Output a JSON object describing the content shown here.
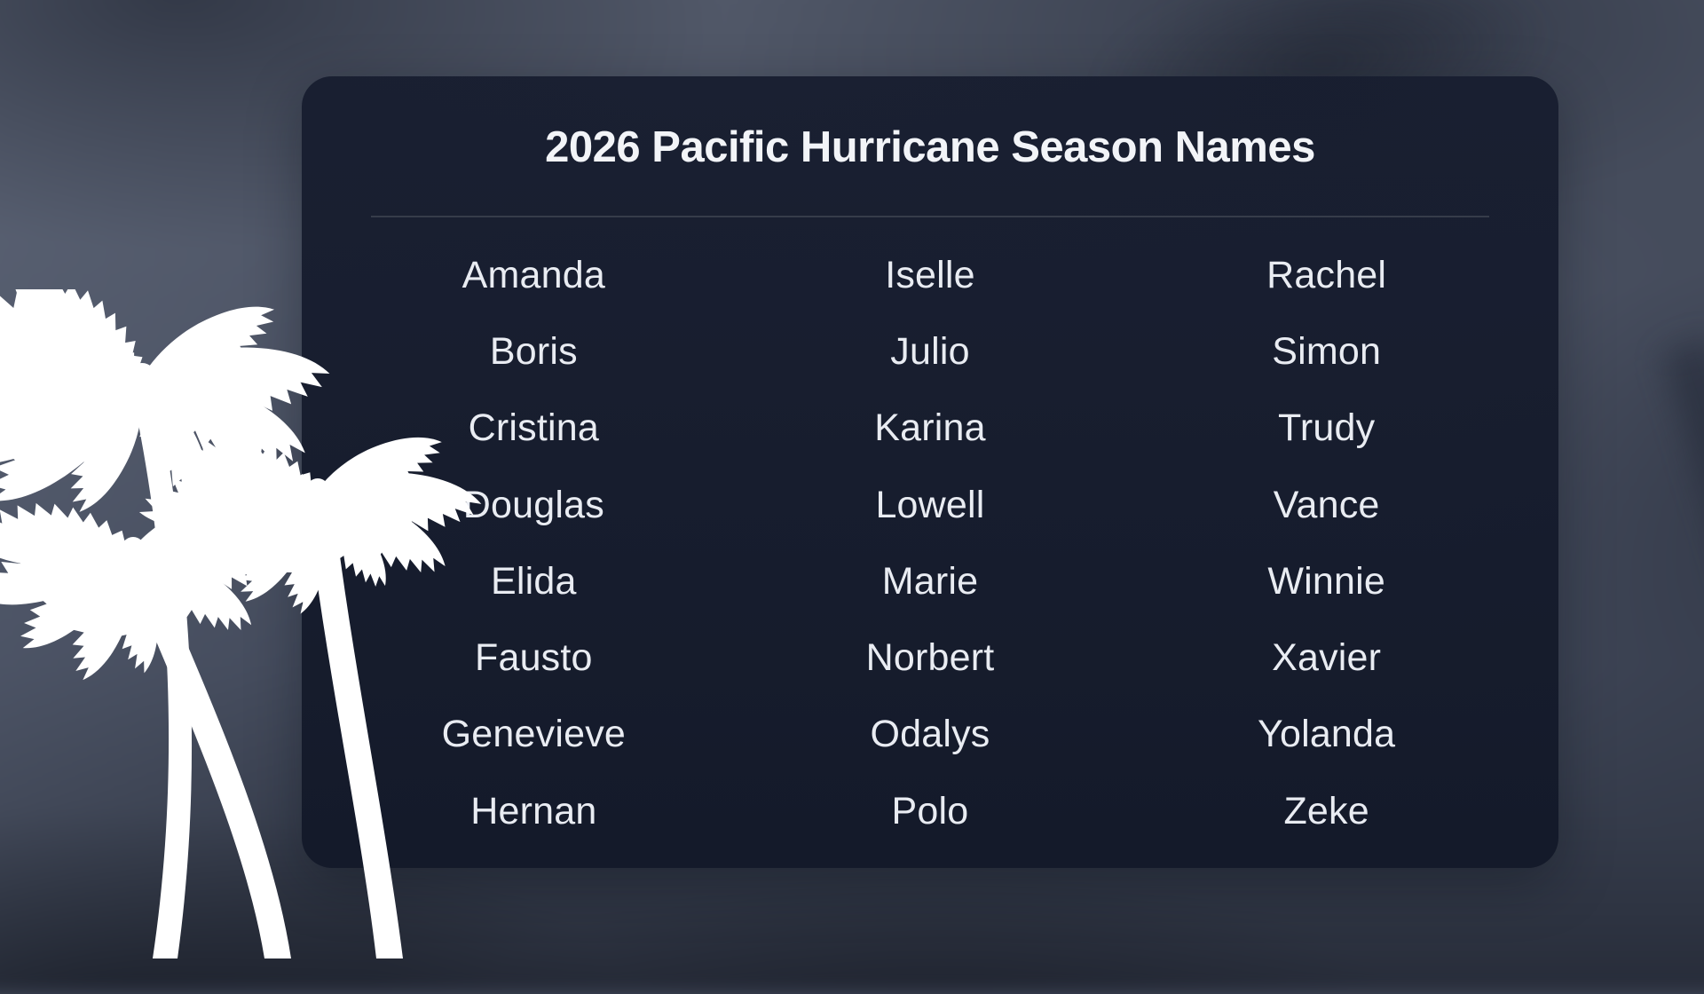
{
  "card": {
    "title": "2026 Pacific Hurricane Season Names",
    "columns": [
      [
        "Amanda",
        "Boris",
        "Cristina",
        "Douglas",
        "Elida",
        "Fausto",
        "Genevieve",
        "Hernan"
      ],
      [
        "Iselle",
        "Julio",
        "Karina",
        "Lowell",
        "Marie",
        "Norbert",
        "Odalys",
        "Polo"
      ],
      [
        "Rachel",
        "Simon",
        "Trudy",
        "Vance",
        "Winnie",
        "Xavier",
        "Yolanda",
        "Zeke"
      ]
    ]
  },
  "decor": {
    "palm_icon": "palm-trees-silhouette"
  },
  "colors": {
    "page_background": "#4a5162",
    "page_background_dark": "#272c39",
    "card_background": "#151b2a",
    "title_text": "#f2f4f8",
    "name_text": "#e9ecf2",
    "divider": "rgba(255,255,255,0.13)",
    "palm_silhouette": "#ffffff"
  }
}
